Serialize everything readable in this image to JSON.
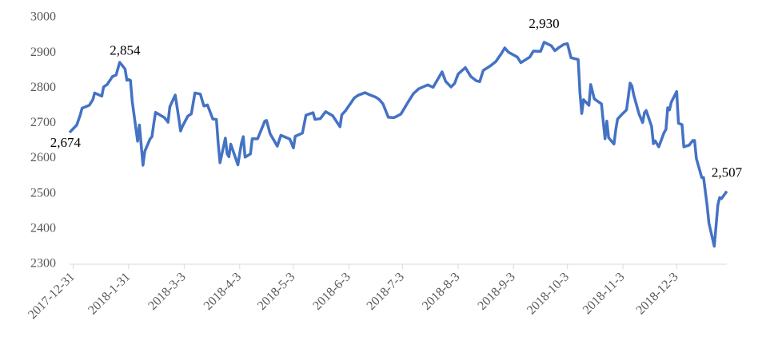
{
  "chart_data": {
    "type": "line",
    "color": "#4472c4",
    "x": [
      "2017-12-29",
      "2018-01-02",
      "2018-01-04",
      "2018-01-05",
      "2018-01-09",
      "2018-01-11",
      "2018-01-12",
      "2018-01-16",
      "2018-01-17",
      "2018-01-19",
      "2018-01-22",
      "2018-01-24",
      "2018-01-26",
      "2018-01-29",
      "2018-01-30",
      "2018-01-31",
      "2018-02-01",
      "2018-02-02",
      "2018-02-05",
      "2018-02-06",
      "2018-02-08",
      "2018-02-09",
      "2018-02-12",
      "2018-02-13",
      "2018-02-14",
      "2018-02-15",
      "2018-02-20",
      "2018-02-22",
      "2018-02-23",
      "2018-02-26",
      "2018-02-28",
      "2018-03-01",
      "2018-03-02",
      "2018-03-05",
      "2018-03-07",
      "2018-03-09",
      "2018-03-12",
      "2018-03-14",
      "2018-03-16",
      "2018-03-19",
      "2018-03-21",
      "2018-03-22",
      "2018-03-23",
      "2018-03-26",
      "2018-03-27",
      "2018-03-28",
      "2018-03-29",
      "2018-04-02",
      "2018-04-03",
      "2018-04-04",
      "2018-04-05",
      "2018-04-06",
      "2018-04-09",
      "2018-04-10",
      "2018-04-13",
      "2018-04-17",
      "2018-04-18",
      "2018-04-20",
      "2018-04-24",
      "2018-04-26",
      "2018-05-01",
      "2018-05-03",
      "2018-05-04",
      "2018-05-08",
      "2018-05-09",
      "2018-05-10",
      "2018-05-14",
      "2018-05-15",
      "2018-05-18",
      "2018-05-21",
      "2018-05-25",
      "2018-05-29",
      "2018-05-30",
      "2018-06-01",
      "2018-06-06",
      "2018-06-08",
      "2018-06-12",
      "2018-06-14",
      "2018-06-18",
      "2018-06-20",
      "2018-06-22",
      "2018-06-25",
      "2018-06-28",
      "2018-06-29",
      "2018-07-02",
      "2018-07-06",
      "2018-07-09",
      "2018-07-12",
      "2018-07-17",
      "2018-07-20",
      "2018-07-25",
      "2018-07-27",
      "2018-07-30",
      "2018-08-01",
      "2018-08-03",
      "2018-08-07",
      "2018-08-10",
      "2018-08-13",
      "2018-08-15",
      "2018-08-17",
      "2018-08-21",
      "2018-08-24",
      "2018-08-27",
      "2018-08-29",
      "2018-08-31",
      "2018-09-05",
      "2018-09-07",
      "2018-09-12",
      "2018-09-14",
      "2018-09-18",
      "2018-09-20",
      "2018-09-24",
      "2018-09-26",
      "2018-09-28",
      "2018-10-01",
      "2018-10-03",
      "2018-10-05",
      "2018-10-09",
      "2018-10-10",
      "2018-10-11",
      "2018-10-12",
      "2018-10-15",
      "2018-10-16",
      "2018-10-18",
      "2018-10-22",
      "2018-10-24",
      "2018-10-25",
      "2018-10-26",
      "2018-10-29",
      "2018-10-30",
      "2018-10-31",
      "2018-11-02",
      "2018-11-05",
      "2018-11-07",
      "2018-11-08",
      "2018-11-09",
      "2018-11-12",
      "2018-11-14",
      "2018-11-15",
      "2018-11-16",
      "2018-11-19",
      "2018-11-20",
      "2018-11-21",
      "2018-11-23",
      "2018-11-26",
      "2018-11-27",
      "2018-11-28",
      "2018-11-29",
      "2018-11-30",
      "2018-12-03",
      "2018-12-04",
      "2018-12-06",
      "2018-12-07",
      "2018-12-10",
      "2018-12-12",
      "2018-12-13",
      "2018-12-14",
      "2018-12-17",
      "2018-12-18",
      "2018-12-19",
      "2018-12-20",
      "2018-12-21",
      "2018-12-24",
      "2018-12-26",
      "2018-12-27",
      "2018-12-28",
      "2018-12-31"
    ],
    "values": [
      2674,
      2695,
      2724,
      2743,
      2751,
      2767,
      2786,
      2777,
      2803,
      2810,
      2833,
      2837,
      2873,
      2854,
      2822,
      2824,
      2822,
      2762,
      2649,
      2695,
      2581,
      2620,
      2656,
      2662,
      2698,
      2731,
      2716,
      2703,
      2747,
      2780,
      2714,
      2678,
      2691,
      2720,
      2727,
      2786,
      2783,
      2749,
      2752,
      2712,
      2711,
      2643,
      2588,
      2658,
      2613,
      2605,
      2641,
      2582,
      2614,
      2644,
      2662,
      2604,
      2613,
      2656,
      2656,
      2706,
      2708,
      2670,
      2635,
      2666,
      2655,
      2630,
      2663,
      2672,
      2697,
      2723,
      2730,
      2711,
      2713,
      2733,
      2721,
      2690,
      2724,
      2735,
      2772,
      2779,
      2787,
      2782,
      2774,
      2767,
      2755,
      2717,
      2716,
      2718,
      2726,
      2760,
      2784,
      2798,
      2809,
      2802,
      2846,
      2819,
      2803,
      2813,
      2840,
      2858,
      2833,
      2821,
      2818,
      2850,
      2863,
      2875,
      2897,
      2914,
      2902,
      2888,
      2872,
      2888,
      2905,
      2904,
      2930,
      2920,
      2906,
      2914,
      2924,
      2926,
      2886,
      2881,
      2786,
      2728,
      2767,
      2751,
      2810,
      2769,
      2755,
      2656,
      2706,
      2659,
      2641,
      2682,
      2712,
      2723,
      2738,
      2814,
      2806,
      2781,
      2726,
      2702,
      2730,
      2736,
      2691,
      2642,
      2650,
      2633,
      2674,
      2682,
      2744,
      2738,
      2760,
      2790,
      2700,
      2696,
      2633,
      2638,
      2651,
      2651,
      2600,
      2546,
      2546,
      2507,
      2467,
      2417,
      2351,
      2468,
      2489,
      2486,
      2507
    ],
    "xlim": [
      "2017-12-29",
      "2018-12-31"
    ],
    "xticks": [
      "2017-12-31",
      {
        "value": "2018-01-31",
        "label": "2018-1-31"
      },
      {
        "value": "2018-03-03",
        "label": "2018-3-3"
      },
      {
        "value": "2018-04-03",
        "label": "2018-4-3"
      },
      {
        "value": "2018-05-03",
        "label": "2018-5-3"
      },
      {
        "value": "2018-06-03",
        "label": "2018-6-3"
      },
      {
        "value": "2018-07-03",
        "label": "2018-7-3"
      },
      {
        "value": "2018-08-03",
        "label": "2018-8-3"
      },
      {
        "value": "2018-09-03",
        "label": "2018-9-3"
      },
      {
        "value": "2018-10-03",
        "label": "2018-10-3"
      },
      {
        "value": "2018-11-03",
        "label": "2018-11-3"
      },
      {
        "value": "2018-12-03",
        "label": "2018-12-3"
      }
    ],
    "ylim": [
      2300,
      3000
    ],
    "yticks": [
      2300,
      2400,
      2500,
      2600,
      2700,
      2800,
      2900,
      3000
    ],
    "annotations": [
      {
        "x": "2017-12-29",
        "value": 2674,
        "label": "2,674"
      },
      {
        "x": "2018-01-29",
        "value": 2854,
        "label": "2,854"
      },
      {
        "x": "2018-09-20",
        "value": 2930,
        "label": "2,930"
      },
      {
        "x": "2018-12-31",
        "value": 2507,
        "label": "2,507"
      }
    ]
  }
}
